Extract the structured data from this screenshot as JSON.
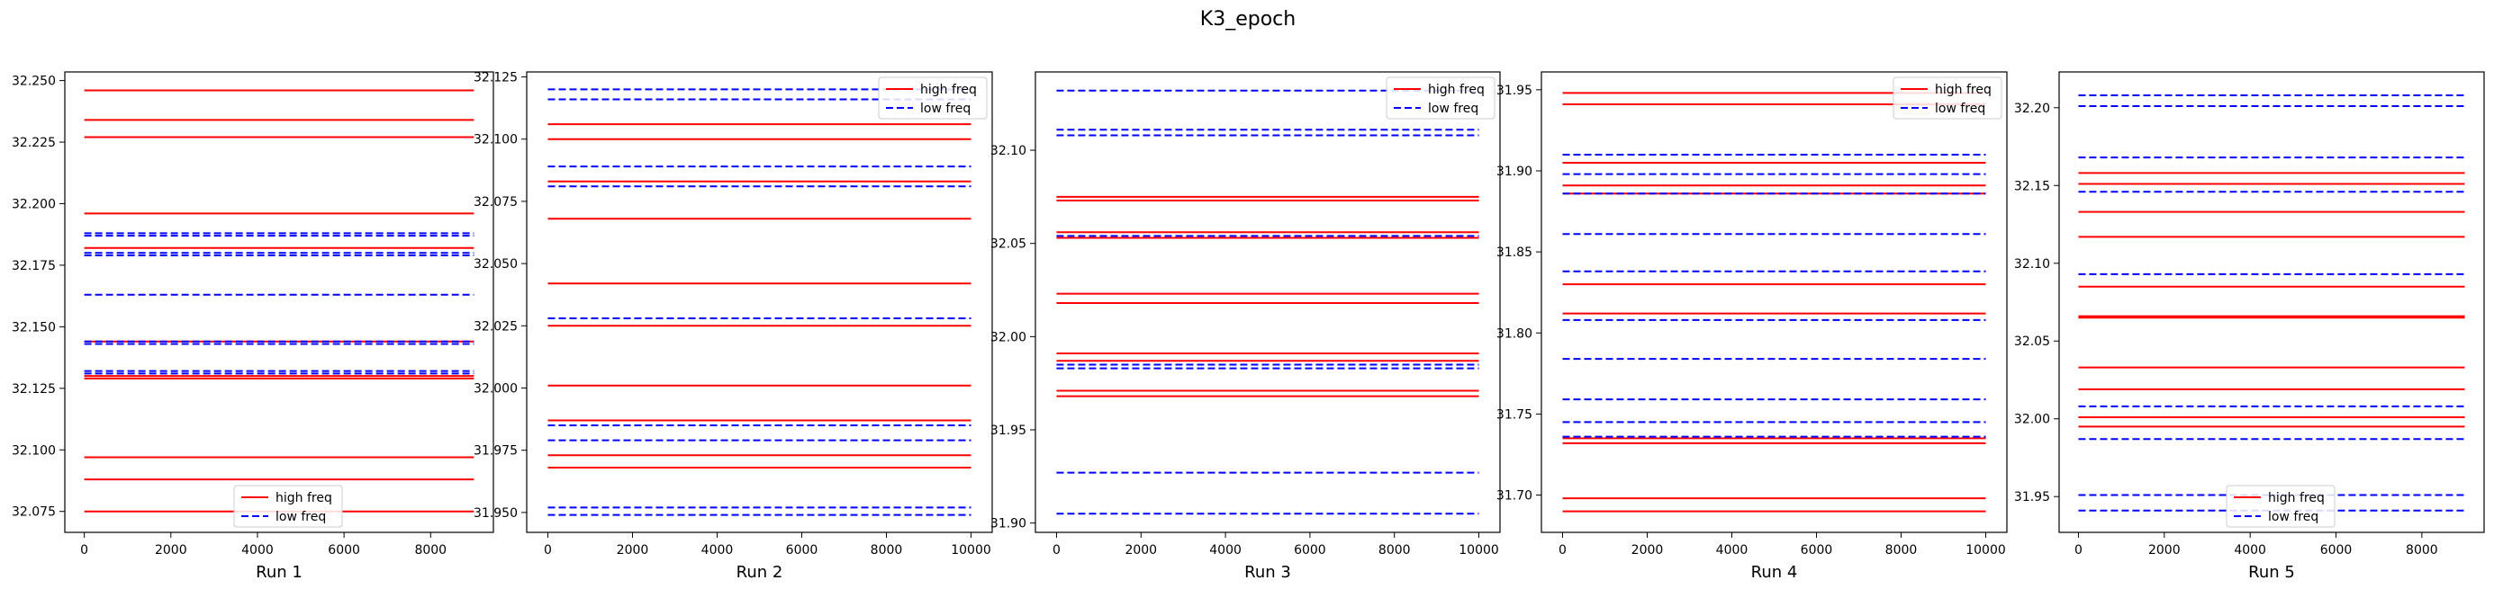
{
  "figure": {
    "suptitle": "K3_epoch"
  },
  "colors": {
    "high": "#ff0000",
    "low": "#0000ff"
  },
  "chart_data": [
    {
      "type": "line",
      "title": "",
      "xlabel": "Run 1",
      "ylabel": "",
      "xlim": [
        -450,
        9450
      ],
      "ylim": [
        32.0665,
        32.2535
      ],
      "xticks": [
        0,
        2000,
        4000,
        6000,
        8000
      ],
      "yticks": [
        "32.075",
        "32.100",
        "32.125",
        "32.150",
        "32.175",
        "32.200",
        "32.225",
        "32.250"
      ],
      "x_range": [
        0,
        9000
      ],
      "legend": {
        "position": "lower-center",
        "entries": [
          "high freq",
          "low freq"
        ]
      },
      "series": [
        {
          "name": "high freq",
          "style": "solid",
          "values": [
            32.246,
            32.234,
            32.227,
            32.196,
            32.182,
            32.144,
            32.13,
            32.129,
            32.097,
            32.088,
            32.075
          ]
        },
        {
          "name": "low freq",
          "style": "dashed",
          "values": [
            32.188,
            32.187,
            32.18,
            32.179,
            32.163,
            32.144,
            32.143,
            32.132,
            32.131
          ]
        }
      ]
    },
    {
      "type": "line",
      "title": "",
      "xlabel": "Run 2",
      "ylabel": "",
      "xlim": [
        -500,
        10500
      ],
      "ylim": [
        31.942,
        32.127
      ],
      "xticks": [
        0,
        2000,
        4000,
        6000,
        8000,
        10000
      ],
      "yticks": [
        "31.950",
        "31.975",
        "32.000",
        "32.025",
        "32.050",
        "32.075",
        "32.100",
        "32.125"
      ],
      "x_range": [
        0,
        10000
      ],
      "legend": {
        "position": "upper-right",
        "entries": [
          "high freq",
          "low freq"
        ]
      },
      "series": [
        {
          "name": "high freq",
          "style": "solid",
          "values": [
            32.106,
            32.1,
            32.083,
            32.068,
            32.042,
            32.025,
            32.001,
            31.987,
            31.973,
            31.968
          ]
        },
        {
          "name": "low freq",
          "style": "dashed",
          "values": [
            32.12,
            32.116,
            32.089,
            32.081,
            32.028,
            31.985,
            31.979,
            31.952,
            31.949
          ]
        }
      ]
    },
    {
      "type": "line",
      "title": "",
      "xlabel": "Run 3",
      "ylabel": "",
      "xlim": [
        -500,
        10500
      ],
      "ylim": [
        31.895,
        32.142
      ],
      "xticks": [
        0,
        2000,
        4000,
        6000,
        8000,
        10000
      ],
      "yticks": [
        "31.90",
        "31.95",
        "32.00",
        "32.05",
        "32.10"
      ],
      "x_range": [
        0,
        10000
      ],
      "legend": {
        "position": "upper-right",
        "entries": [
          "high freq",
          "low freq"
        ]
      },
      "series": [
        {
          "name": "high freq",
          "style": "solid",
          "values": [
            32.075,
            32.073,
            32.056,
            32.053,
            32.023,
            32.018,
            31.991,
            31.987,
            31.971,
            31.968
          ]
        },
        {
          "name": "low freq",
          "style": "dashed",
          "values": [
            32.132,
            32.111,
            32.108,
            32.054,
            31.985,
            31.983,
            31.927,
            31.905
          ]
        }
      ]
    },
    {
      "type": "line",
      "title": "",
      "xlabel": "Run 4",
      "ylabel": "",
      "xlim": [
        -500,
        10500
      ],
      "ylim": [
        31.677,
        31.961
      ],
      "xticks": [
        0,
        2000,
        4000,
        6000,
        8000,
        10000
      ],
      "yticks": [
        "31.70",
        "31.75",
        "31.80",
        "31.85",
        "31.90",
        "31.95"
      ],
      "x_range": [
        0,
        10000
      ],
      "legend": {
        "position": "upper-right",
        "entries": [
          "high freq",
          "low freq"
        ]
      },
      "series": [
        {
          "name": "high freq",
          "style": "solid",
          "values": [
            31.948,
            31.941,
            31.905,
            31.891,
            31.886,
            31.83,
            31.812,
            31.735,
            31.732,
            31.698,
            31.69
          ]
        },
        {
          "name": "low freq",
          "style": "dashed",
          "values": [
            31.91,
            31.898,
            31.886,
            31.861,
            31.838,
            31.808,
            31.784,
            31.759,
            31.745,
            31.736
          ]
        }
      ]
    },
    {
      "type": "line",
      "title": "",
      "xlabel": "Run 5",
      "ylabel": "",
      "xlim": [
        -450,
        9450
      ],
      "ylim": [
        31.927,
        32.223
      ],
      "xticks": [
        0,
        2000,
        4000,
        6000,
        8000
      ],
      "yticks": [
        "31.95",
        "32.00",
        "32.05",
        "32.10",
        "32.15",
        "32.20"
      ],
      "x_range": [
        0,
        9000
      ],
      "legend": {
        "position": "lower-center",
        "entries": [
          "high freq",
          "low freq"
        ]
      },
      "series": [
        {
          "name": "high freq",
          "style": "solid",
          "values": [
            32.158,
            32.151,
            32.133,
            32.117,
            32.085,
            32.066,
            32.065,
            32.033,
            32.019,
            32.001,
            31.995
          ]
        },
        {
          "name": "low freq",
          "style": "dashed",
          "values": [
            32.208,
            32.201,
            32.168,
            32.146,
            32.093,
            32.008,
            31.987,
            31.951,
            31.941
          ]
        }
      ]
    }
  ]
}
